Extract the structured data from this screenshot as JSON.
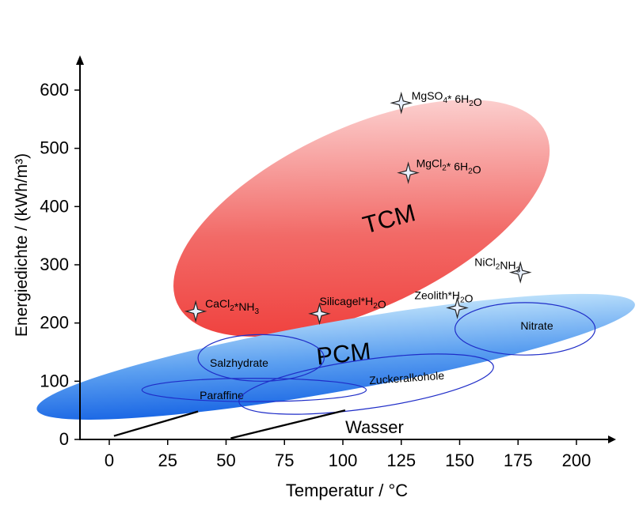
{
  "chart_data": {
    "type": "scatter",
    "title": "",
    "xlabel": "Temperatur / °C",
    "ylabel": "Energiedichte / (kWh/m³)",
    "xlim": [
      -20,
      220
    ],
    "ylim": [
      0,
      620
    ],
    "x_ticks": [
      0,
      25,
      50,
      75,
      100,
      125,
      150,
      175,
      200
    ],
    "y_ticks": [
      0,
      100,
      200,
      300,
      400,
      500,
      600
    ],
    "grid": false,
    "regions": [
      {
        "label": "TCM",
        "kind": "large-group",
        "color": "#ef3b36",
        "center": [
          108,
          380
        ],
        "rx": 87,
        "ry": 155,
        "rotate": -25
      },
      {
        "label": "PCM",
        "kind": "large-group",
        "color": "#2f6fe8",
        "center": [
          97,
          142
        ],
        "rx": 130,
        "ry": 60,
        "rotate": -10
      }
    ],
    "subregions": [
      {
        "label": "Salzhydrate",
        "center": [
          65,
          140
        ],
        "rx": 27,
        "ry": 40
      },
      {
        "label": "Paraffine",
        "center": [
          62,
          85
        ],
        "rx": 48,
        "ry": 20
      },
      {
        "label": "Zuckeralkohole",
        "center": [
          110,
          95
        ],
        "rx": 55,
        "ry": 42,
        "rotate": -8
      },
      {
        "label": "Nitrate",
        "center": [
          178,
          190
        ],
        "rx": 30,
        "ry": 45
      }
    ],
    "points": [
      {
        "label": "MgSO₄* 6H₂O",
        "x": 125,
        "y": 578
      },
      {
        "label": "MgCl₂* 6H₂O",
        "x": 128,
        "y": 458
      },
      {
        "label": "NiCl₂NH₃",
        "x": 176,
        "y": 287
      },
      {
        "label": "Zeolith*H₂O",
        "x": 149,
        "y": 226
      },
      {
        "label": "CaCl₂*NH₃",
        "x": 37,
        "y": 220
      },
      {
        "label": "Silicagel*H₂O",
        "x": 90,
        "y": 216
      }
    ],
    "lines": [
      {
        "label": "Wasser",
        "points": [
          [
            2,
            6
          ],
          [
            38,
            48
          ]
        ]
      },
      {
        "label": "",
        "points": [
          [
            52,
            2
          ],
          [
            101,
            50
          ]
        ]
      }
    ]
  }
}
